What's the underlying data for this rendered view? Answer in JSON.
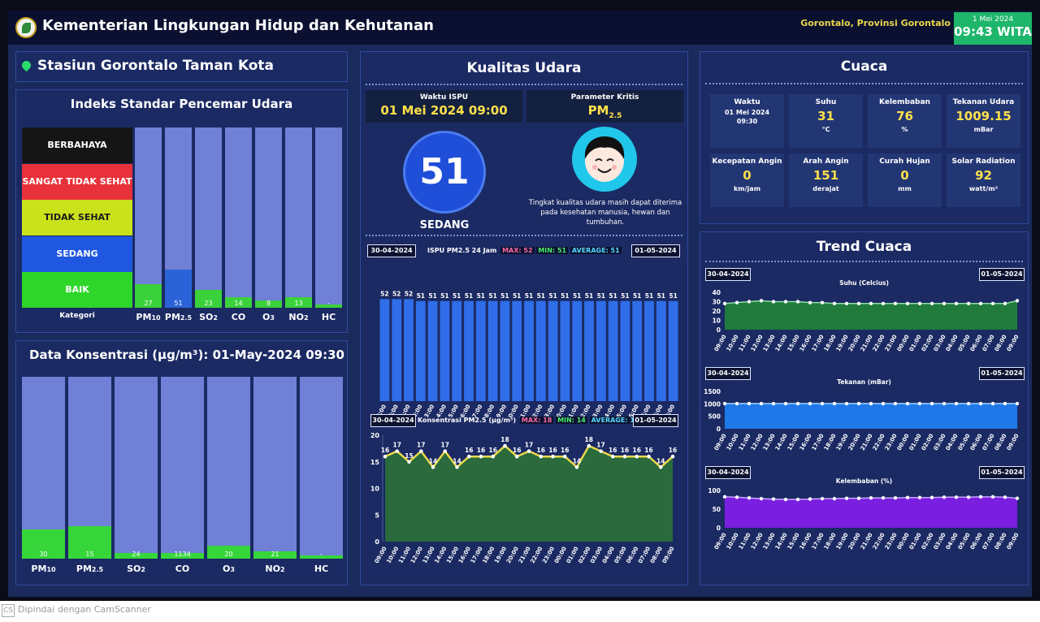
{
  "header": {
    "title": "Kementerian Lingkungan Hidup dan Kehutanan",
    "location": "Gorontalo, Provinsi Gorontalo",
    "date": "1 Mei 2024",
    "time": "09:43 WITA"
  },
  "station": {
    "name": "Stasiun Gorontalo Taman Kota"
  },
  "ispu_index": {
    "title": "Indeks Standar Pencemar Udara",
    "categories_label": "Kategori",
    "categories": [
      {
        "label": "BERBAHAYA",
        "color": "#151515",
        "text_color": "#ffffff"
      },
      {
        "label": "SANGAT TIDAK SEHAT",
        "color": "#e8313a",
        "text_color": "#ffffff"
      },
      {
        "label": "TIDAK SEHAT",
        "color": "#c9e21b",
        "text_color": "#1a1a1a"
      },
      {
        "label": "SEDANG",
        "color": "#1f57e0",
        "text_color": "#ffffff"
      },
      {
        "label": "BAIK",
        "color": "#2ed62a",
        "text_color": "#ffffff"
      }
    ],
    "pollutants": [
      {
        "base": "PM",
        "sub": "10",
        "value": "27",
        "fill": 0.13,
        "color": "#3ad13a"
      },
      {
        "base": "PM",
        "sub": "2.5",
        "value": "51",
        "fill": 0.21,
        "color": "#2a63d8"
      },
      {
        "base": "SO",
        "sub": "2",
        "value": "23",
        "fill": 0.1,
        "color": "#3ad13a"
      },
      {
        "base": "CO",
        "sub": "",
        "value": "14",
        "fill": 0.06,
        "color": "#3ad13a"
      },
      {
        "base": "O",
        "sub": "3",
        "value": "8",
        "fill": 0.04,
        "color": "#3ad13a"
      },
      {
        "base": "NO",
        "sub": "2",
        "value": "13",
        "fill": 0.06,
        "color": "#3ad13a"
      },
      {
        "base": "HC",
        "sub": "",
        "value": "-",
        "fill": 0.02,
        "color": "#3ad13a"
      }
    ]
  },
  "concentration": {
    "title": "Data Konsentrasi (µg/m³): 01-May-2024 09:30",
    "pollutants": [
      {
        "base": "PM",
        "sub": "10",
        "value": "30",
        "fill": 0.16
      },
      {
        "base": "PM",
        "sub": "2.5",
        "value": "15",
        "fill": 0.18
      },
      {
        "base": "SO",
        "sub": "2",
        "value": "24",
        "fill": 0.03
      },
      {
        "base": "CO",
        "sub": "",
        "value": "1134",
        "fill": 0.03
      },
      {
        "base": "O",
        "sub": "3",
        "value": "20",
        "fill": 0.07
      },
      {
        "base": "NO",
        "sub": "2",
        "value": "21",
        "fill": 0.04
      },
      {
        "base": "HC",
        "sub": "",
        "value": "-",
        "fill": 0.02
      }
    ]
  },
  "air_quality": {
    "title": "Kualitas Udara",
    "time_label": "Waktu ISPU",
    "time_value": "01 Mei 2024 09:00",
    "param_label": "Parameter Kritis",
    "param_base": "PM",
    "param_sub": "2.5",
    "index": "51",
    "category": "SEDANG",
    "description": "Tingkat kualitas udara masih dapat diterima pada kesehatan manusia, hewan dan tumbuhan."
  },
  "ispu_chart": {
    "date_start": "30-04-2024",
    "date_end": "01-05-2024",
    "label": "ISPU PM2.5 24 Jam",
    "max": "MAX: 52",
    "min": "MIN: 51",
    "avg": "AVERAGE: 51"
  },
  "pm25_chart": {
    "date_start": "30-04-2024",
    "date_end": "01-05-2024",
    "label": "Konsentrasi PM2.5 (µg/m³)",
    "max": "MAX: 18",
    "min": "MIN: 14",
    "avg": "AVERAGE: 16"
  },
  "weather": {
    "title": "Cuaca",
    "items": [
      {
        "label": "Waktu",
        "value": "01 Mei 2024",
        "value2": "09:30",
        "unit": ""
      },
      {
        "label": "Suhu",
        "value": "31",
        "unit": "°C"
      },
      {
        "label": "Kelembaban",
        "value": "76",
        "unit": "%"
      },
      {
        "label": "Tekanan Udara",
        "value": "1009.15",
        "unit": "mBar"
      },
      {
        "label": "Kecepatan Angin",
        "value": "0",
        "unit": "km/jam"
      },
      {
        "label": "Arah Angin",
        "value": "151",
        "unit": "derajat"
      },
      {
        "label": "Curah Hujan",
        "value": "0",
        "unit": "mm"
      },
      {
        "label": "Solar Radiation",
        "value": "92",
        "unit": "watt/m²"
      }
    ]
  },
  "trend": {
    "title": "Trend Cuaca",
    "date_start": "30-04-2024",
    "date_end": "01-05-2024",
    "charts": [
      {
        "title": "Suhu (Celcius)",
        "yticks": [
          40,
          30,
          20,
          10,
          0
        ],
        "ymax": 40,
        "fill": "#1f7a3c",
        "stroke": "#8fe0a0",
        "values": [
          28,
          29,
          30,
          31,
          30,
          30,
          30,
          29,
          29,
          28,
          28,
          28,
          28,
          28,
          28,
          28,
          28,
          28,
          28,
          28,
          28,
          28,
          28,
          28,
          31
        ]
      },
      {
        "title": "Tekanan (mBar)",
        "yticks": [
          1500,
          1000,
          500,
          0
        ],
        "ymax": 1500,
        "fill": "#1f78e8",
        "stroke": "#9fd6ff",
        "values": [
          1009,
          1009,
          1009,
          1009,
          1009,
          1009,
          1009,
          1009,
          1009,
          1009,
          1009,
          1009,
          1009,
          1009,
          1009,
          1009,
          1009,
          1009,
          1009,
          1009,
          1009,
          1009,
          1009,
          1009,
          1009
        ]
      },
      {
        "title": "Kelembaban (%)",
        "yticks": [
          100,
          50,
          0
        ],
        "ymax": 100,
        "fill": "#7a1ee0",
        "stroke": "#c9a8ff",
        "values": [
          83,
          82,
          80,
          78,
          77,
          76,
          76,
          77,
          78,
          78,
          79,
          79,
          80,
          80,
          80,
          81,
          81,
          81,
          82,
          82,
          82,
          83,
          83,
          82,
          79
        ]
      }
    ]
  },
  "chart_data": [
    {
      "type": "bar",
      "title": "ISPU PM2.5 24 Jam",
      "categories": [
        "09:00",
        "10:00",
        "11:00",
        "12:00",
        "13:00",
        "14:00",
        "15:00",
        "16:00",
        "17:00",
        "18:00",
        "19:00",
        "20:00",
        "21:00",
        "22:00",
        "23:00",
        "00:00",
        "01:00",
        "02:00",
        "03:00",
        "04:00",
        "05:00",
        "06:00",
        "07:00",
        "08:00",
        "09:00"
      ],
      "values": [
        52,
        52,
        52,
        51,
        51,
        51,
        51,
        51,
        51,
        51,
        51,
        51,
        51,
        51,
        51,
        51,
        51,
        51,
        51,
        51,
        51,
        51,
        51,
        51,
        51
      ],
      "ylim": [
        0,
        60
      ],
      "color": "#2f6ee8"
    },
    {
      "type": "area",
      "title": "Konsentrasi PM2.5 (µg/m³)",
      "categories": [
        "09:00",
        "10:00",
        "11:00",
        "12:00",
        "13:00",
        "14:00",
        "15:00",
        "16:00",
        "17:00",
        "18:00",
        "19:00",
        "20:00",
        "21:00",
        "22:00",
        "23:00",
        "00:00",
        "01:00",
        "02:00",
        "03:00",
        "04:00",
        "05:00",
        "06:00",
        "07:00",
        "08:00",
        "09:00"
      ],
      "values": [
        16,
        17,
        15,
        17,
        14,
        17,
        14,
        16,
        16,
        16,
        18,
        16,
        17,
        16,
        16,
        16,
        14,
        18,
        17,
        16,
        16,
        16,
        16,
        14,
        16
      ],
      "yticks": [
        20,
        15,
        10,
        5,
        0
      ],
      "ylim": [
        0,
        20
      ],
      "fill": "#2a6a3c",
      "stroke": "#ead94a"
    }
  ],
  "footer": {
    "scanner_badge": "CS",
    "scanner_text": "Dipindai dengan CamScanner"
  }
}
